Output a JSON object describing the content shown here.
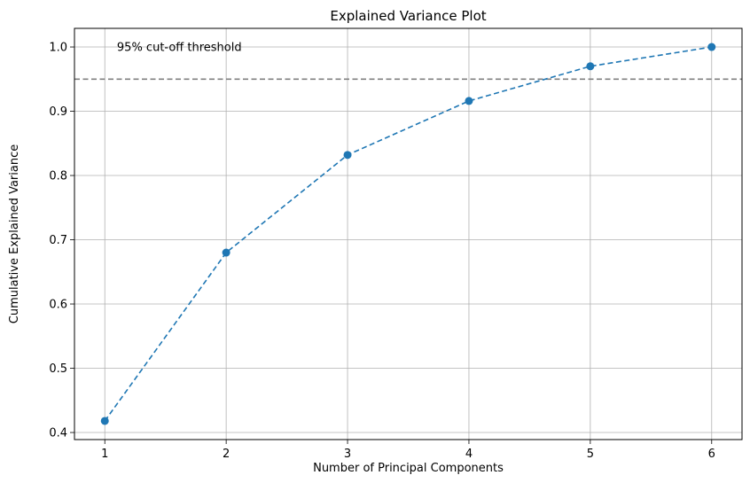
{
  "chart_data": {
    "type": "line",
    "title": "Explained Variance Plot",
    "xlabel": "Number of Principal Components",
    "ylabel": "Cumulative Explained Variance",
    "x": [
      1,
      2,
      3,
      4,
      5,
      6
    ],
    "series": [
      {
        "values": [
          0.418,
          0.68,
          0.832,
          0.916,
          0.97,
          1.0
        ],
        "color": "#1f77b4",
        "linestyle": "dashed",
        "marker": "circle"
      }
    ],
    "xlim": [
      0.75,
      6.25
    ],
    "ylim": [
      0.389,
      1.029
    ],
    "xticks": [
      1,
      2,
      3,
      4,
      5,
      6
    ],
    "yticks": [
      0.4,
      0.5,
      0.6,
      0.7,
      0.8,
      0.9,
      1.0
    ],
    "ytick_labels": [
      "0.4",
      "0.5",
      "0.6",
      "0.7",
      "0.8",
      "0.9",
      "1.0"
    ],
    "grid": true,
    "threshold": {
      "value": 0.95,
      "color": "#808080",
      "linestyle": "dashed"
    },
    "annotation": {
      "text": "95% cut-off threshold",
      "x": 1.1,
      "y": 1.0
    }
  }
}
